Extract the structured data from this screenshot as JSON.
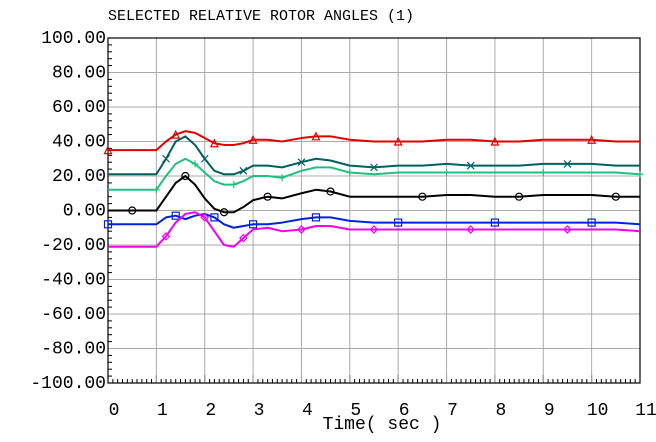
{
  "chart_data": {
    "type": "line",
    "title": "SELECTED RELATIVE ROTOR ANGLES (1)",
    "x_label": "Time( sec )",
    "x": [
      0,
      0.5,
      1,
      1.2,
      1.4,
      1.6,
      1.8,
      2,
      2.2,
      2.4,
      2.6,
      2.8,
      3,
      3.3,
      3.6,
      4,
      4.3,
      4.6,
      5,
      5.5,
      6,
      6.5,
      7,
      7.5,
      8,
      8.5,
      9,
      9.5,
      10,
      10.5,
      11
    ],
    "series": [
      {
        "color": "#e00000",
        "marker": "triangle",
        "values": [
          35,
          35,
          35,
          40,
          44,
          46,
          45,
          42,
          39,
          38,
          38,
          39,
          41,
          41,
          40,
          42,
          43,
          43,
          41,
          40,
          40,
          40,
          41,
          41,
          40,
          40,
          41,
          41,
          41,
          40,
          40
        ]
      },
      {
        "color": "#006060",
        "marker": "x",
        "values": [
          21,
          21,
          21,
          30,
          40,
          43,
          38,
          30,
          23,
          21,
          21,
          23,
          26,
          26,
          25,
          28,
          30,
          29,
          26,
          25,
          26,
          26,
          27,
          26,
          26,
          26,
          27,
          27,
          27,
          26,
          26
        ]
      },
      {
        "color": "#20c080",
        "marker": "plus",
        "values": [
          12,
          12,
          12,
          20,
          27,
          30,
          27,
          22,
          17,
          15,
          15,
          17,
          20,
          20,
          19,
          23,
          25,
          25,
          22,
          21,
          22,
          22,
          22,
          22,
          22,
          22,
          22,
          22,
          22,
          22,
          21
        ]
      },
      {
        "color": "#000000",
        "marker": "circle",
        "values": [
          0,
          0,
          0,
          8,
          16,
          20,
          15,
          7,
          1,
          -1,
          -1,
          2,
          6,
          8,
          7,
          10,
          12,
          11,
          8,
          8,
          8,
          8,
          9,
          9,
          8,
          8,
          9,
          9,
          9,
          8,
          8
        ]
      },
      {
        "color": "#0020e0",
        "marker": "square",
        "values": [
          -8,
          -8,
          -8,
          -4,
          -3,
          -5,
          -3,
          -2,
          -4,
          -8,
          -10,
          -9,
          -8,
          -8,
          -7,
          -5,
          -4,
          -4,
          -6,
          -7,
          -7,
          -7,
          -7,
          -7,
          -7,
          -7,
          -7,
          -7,
          -7,
          -7,
          -8
        ]
      },
      {
        "color": "#f000f0",
        "marker": "diamond",
        "values": [
          -21,
          -21,
          -21,
          -15,
          -7,
          -2,
          -1,
          -4,
          -12,
          -20,
          -21,
          -16,
          -11,
          -10,
          -12,
          -11,
          -9,
          -9,
          -11,
          -11,
          -11,
          -11,
          -11,
          -11,
          -11,
          -11,
          -11,
          -11,
          -11,
          -11,
          -12
        ]
      }
    ],
    "xlim": [
      0,
      11
    ],
    "xticks": [
      0,
      1,
      2,
      3,
      4,
      5,
      6,
      7,
      8,
      9,
      10,
      11
    ],
    "ylim": [
      -100,
      100
    ],
    "yticks": [
      {
        "value": -100,
        "label": "-100.00"
      },
      {
        "value": -80,
        "label": "-80.00"
      },
      {
        "value": -60,
        "label": "-60.00"
      },
      {
        "value": -40,
        "label": "-40.00"
      },
      {
        "value": -20,
        "label": "-20.00"
      },
      {
        "value": 0,
        "label": "0.00"
      },
      {
        "value": 20,
        "label": "20.00"
      },
      {
        "value": 40,
        "label": "40.00"
      },
      {
        "value": 60,
        "label": "60.00"
      },
      {
        "value": 80,
        "label": "80.00"
      },
      {
        "value": 100,
        "label": "100.00"
      }
    ],
    "grid": true
  }
}
